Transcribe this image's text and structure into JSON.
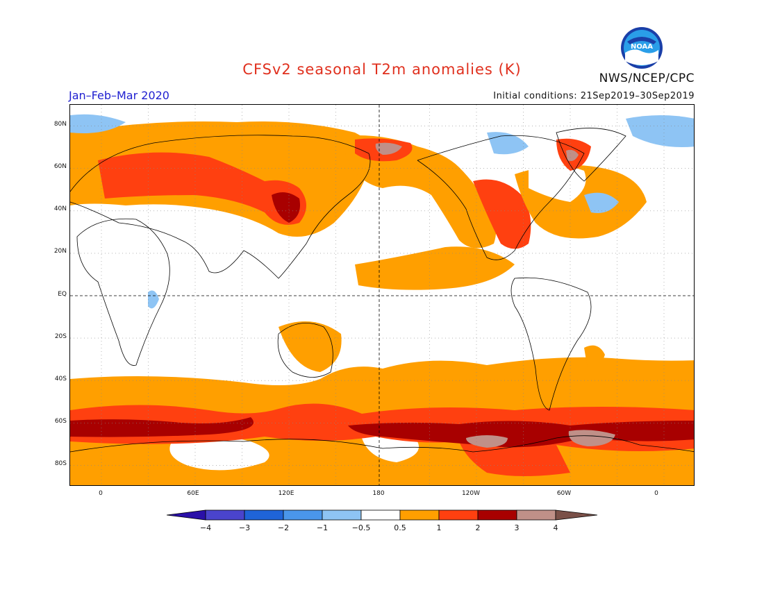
{
  "header": {
    "title": "CFSv2 seasonal T2m anomalies (K)",
    "period": "Jan–Feb–Mar 2020",
    "initial_conditions": "Initial conditions: 21Sep2019–30Sep2019",
    "agency": "NWS/NCEP/CPC",
    "logo_text": "NOAA"
  },
  "map": {
    "lat_labels": [
      "80N",
      "60N",
      "40N",
      "20N",
      "EQ",
      "20S",
      "40S",
      "60S",
      "80S"
    ],
    "lon_labels": [
      "0",
      "60E",
      "120E",
      "180",
      "120W",
      "60W",
      "0"
    ],
    "projection": "cylindrical-equidistant",
    "lon_range": [
      -20,
      380
    ],
    "lat_range": [
      -90,
      90
    ]
  },
  "colorbar": {
    "labels": [
      "−4",
      "−3",
      "−2",
      "−1",
      "−0.5",
      "0.5",
      "1",
      "2",
      "3",
      "4"
    ],
    "colors": [
      "#2a10a8",
      "#4a44cc",
      "#1f64d8",
      "#4a96ea",
      "#8ec4f4",
      "#ffffff",
      "#ff9f00",
      "#ff4010",
      "#a80000",
      "#c09088",
      "#7a5048"
    ]
  }
}
